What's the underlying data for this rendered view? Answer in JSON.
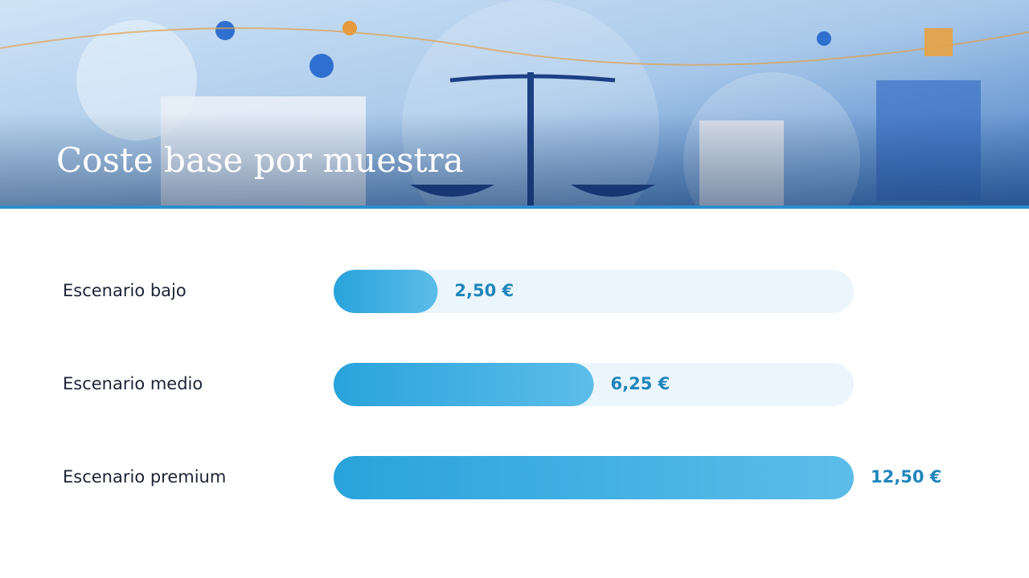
{
  "chart_data": {
    "type": "bar",
    "orientation": "horizontal",
    "title": "Coste base por muestra",
    "categories": [
      "Escenario bajo",
      "Escenario medio",
      "Escenario premium"
    ],
    "values": [
      2.5,
      6.25,
      12.5
    ],
    "value_labels": [
      "2,50 €",
      "6,25 €",
      "12,50 €"
    ],
    "color": "#2ea6df",
    "xlim": [
      0,
      12.5
    ]
  }
}
